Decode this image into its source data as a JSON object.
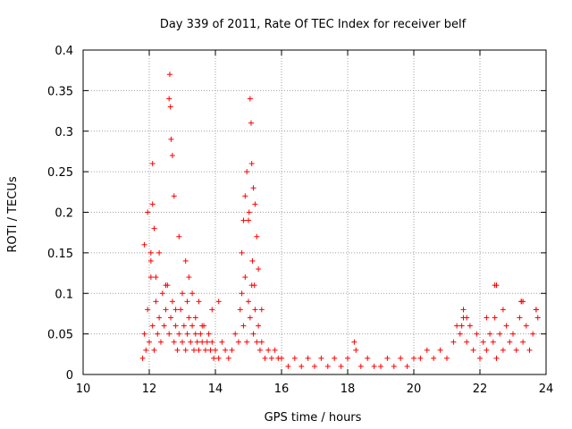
{
  "chart_data": {
    "type": "scatter",
    "title": "Day 339 of 2011, Rate Of TEC Index for receiver belf",
    "xlabel": "GPS time / hours",
    "ylabel": "ROTI / TECUs",
    "xlim": [
      10,
      24
    ],
    "ylim": [
      0,
      0.4
    ],
    "xticks": [
      "10",
      "12",
      "14",
      "16",
      "18",
      "20",
      "22",
      "24"
    ],
    "yticks": [
      "0",
      "0.05",
      "0.1",
      "0.15",
      "0.2",
      "0.25",
      "0.3",
      "0.35",
      "0.4"
    ],
    "grid": true,
    "marker": "+",
    "color": "#ff0000",
    "series": [
      {
        "name": "ROTI",
        "x": [
          11.8,
          11.85,
          11.9,
          11.95,
          12.0,
          12.05,
          12.1,
          12.15,
          12.2,
          12.25,
          12.3,
          12.35,
          12.4,
          12.45,
          12.5,
          12.55,
          12.6,
          12.65,
          12.7,
          12.75,
          12.8,
          12.85,
          12.9,
          12.95,
          13.0,
          13.05,
          13.1,
          13.15,
          13.2,
          13.25,
          13.3,
          13.35,
          13.4,
          13.45,
          13.5,
          13.55,
          13.6,
          13.65,
          13.7,
          13.75,
          13.8,
          13.85,
          13.9,
          13.95,
          14.0,
          14.1,
          14.2,
          14.3,
          14.4,
          14.5,
          14.6,
          14.7,
          14.75,
          14.8,
          14.85,
          14.9,
          14.95,
          15.0,
          15.05,
          15.1,
          15.15,
          15.2,
          15.25,
          15.3,
          15.35,
          15.4,
          15.5,
          15.6,
          15.7,
          15.8,
          15.9,
          16.0,
          16.2,
          16.4,
          16.6,
          16.8,
          17.0,
          17.2,
          17.4,
          17.6,
          17.8,
          18.0,
          18.2,
          18.25,
          18.4,
          18.6,
          18.8,
          19.0,
          19.2,
          19.4,
          19.6,
          19.8,
          20.0,
          20.2,
          20.4,
          20.6,
          20.8,
          21.0,
          21.2,
          21.3,
          21.4,
          21.5,
          21.6,
          21.7,
          21.8,
          21.9,
          22.0,
          22.1,
          22.2,
          22.3,
          22.4,
          22.45,
          22.5,
          22.6,
          22.7,
          22.8,
          22.9,
          23.0,
          23.1,
          23.2,
          23.25,
          23.3,
          23.4,
          23.5,
          23.6,
          23.7,
          11.85,
          11.95,
          12.05,
          12.1,
          12.15,
          12.6,
          12.62,
          12.64,
          12.66,
          12.7,
          12.75,
          12.9,
          13.1,
          13.2,
          13.3,
          13.5,
          13.9,
          14.1,
          14.9,
          14.95,
          15.0,
          15.02,
          15.05,
          15.08,
          15.1,
          15.15,
          15.2,
          15.25,
          15.3,
          15.4,
          12.05,
          12.1,
          12.2,
          12.3,
          12.5,
          12.8,
          13.0,
          13.15,
          13.4,
          13.6,
          14.8,
          14.85,
          15.12,
          15.18,
          22.45,
          22.5,
          23.25,
          23.3,
          23.7,
          23.75,
          21.5,
          21.6,
          21.45,
          22.2,
          22.7
        ],
        "y": [
          0.02,
          0.05,
          0.03,
          0.08,
          0.04,
          0.12,
          0.06,
          0.03,
          0.09,
          0.05,
          0.07,
          0.04,
          0.1,
          0.06,
          0.08,
          0.11,
          0.05,
          0.07,
          0.09,
          0.04,
          0.06,
          0.03,
          0.05,
          0.08,
          0.04,
          0.06,
          0.03,
          0.05,
          0.07,
          0.04,
          0.06,
          0.03,
          0.05,
          0.04,
          0.03,
          0.05,
          0.04,
          0.06,
          0.03,
          0.04,
          0.05,
          0.03,
          0.04,
          0.02,
          0.03,
          0.02,
          0.04,
          0.03,
          0.02,
          0.03,
          0.05,
          0.04,
          0.08,
          0.1,
          0.06,
          0.12,
          0.04,
          0.09,
          0.07,
          0.11,
          0.05,
          0.08,
          0.04,
          0.06,
          0.03,
          0.04,
          0.02,
          0.03,
          0.02,
          0.03,
          0.02,
          0.02,
          0.01,
          0.02,
          0.01,
          0.02,
          0.01,
          0.02,
          0.01,
          0.02,
          0.01,
          0.02,
          0.04,
          0.03,
          0.01,
          0.02,
          0.01,
          0.01,
          0.02,
          0.01,
          0.02,
          0.01,
          0.02,
          0.02,
          0.03,
          0.02,
          0.03,
          0.02,
          0.04,
          0.06,
          0.05,
          0.07,
          0.04,
          0.06,
          0.03,
          0.05,
          0.02,
          0.04,
          0.03,
          0.05,
          0.04,
          0.07,
          0.02,
          0.05,
          0.03,
          0.06,
          0.04,
          0.05,
          0.03,
          0.07,
          0.09,
          0.04,
          0.06,
          0.03,
          0.05,
          0.08,
          0.16,
          0.2,
          0.15,
          0.26,
          0.18,
          0.34,
          0.37,
          0.33,
          0.29,
          0.27,
          0.22,
          0.17,
          0.14,
          0.12,
          0.1,
          0.09,
          0.08,
          0.09,
          0.22,
          0.25,
          0.19,
          0.2,
          0.34,
          0.31,
          0.26,
          0.23,
          0.21,
          0.17,
          0.13,
          0.08,
          0.14,
          0.21,
          0.12,
          0.15,
          0.11,
          0.08,
          0.1,
          0.09,
          0.07,
          0.06,
          0.15,
          0.19,
          0.14,
          0.11,
          0.11,
          0.11,
          0.09,
          0.09,
          0.08,
          0.07,
          0.08,
          0.07,
          0.06,
          0.07,
          0.08
        ]
      }
    ]
  }
}
